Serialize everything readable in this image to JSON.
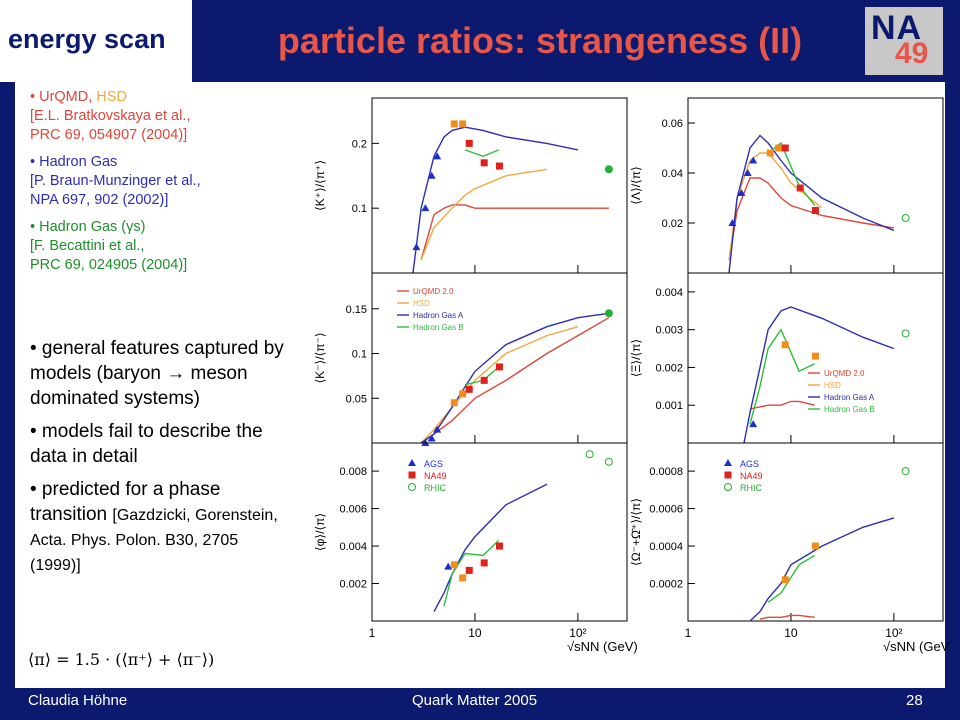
{
  "header": {
    "left_label": "energy scan",
    "title": "particle ratios: strangeness (II)",
    "logo_text_top": "NA",
    "logo_text_bottom": "49"
  },
  "refs": [
    {
      "line1a": "• UrQMD, ",
      "line1b": "HSD",
      "line2": "[E.L. Bratkovskaya et al.,",
      "line3": "PRC 69, 054907 (2004)]"
    },
    {
      "line1": "• Hadron Gas",
      "line2": "[P. Braun-Munzinger et al.,",
      "line3": "NPA 697, 902 (2002)]"
    },
    {
      "line1": "• Hadron Gas (γs)",
      "line2": "[F. Becattini et al.,",
      "line3": "PRC 69, 024905 (2004)]"
    }
  ],
  "bullets": [
    "• general features captured by models (baryon → meson dominated systems)",
    "• models fail to describe the data in detail",
    "•  predicted for a phase transition "
  ],
  "bullet3_small": "[Gazdzicki, Gorenstein, Acta. Phys. Polon. B30, 2705 (1999)]",
  "formula": "⟨π⟩ = 1.5 · (⟨π⁺⟩ + ⟨π⁻⟩)",
  "footer": {
    "left": "Claudia Höhne",
    "center": "Quark Matter 2005",
    "right": "28"
  },
  "colors": {
    "urqmd": "#e0453a",
    "hsd": "#f2a83b",
    "hgA": "#2b2fb5",
    "hgB": "#2cbf3b",
    "ags": "#1b2fd0",
    "na49": "#e0201a",
    "na49_open": "#f28c1a",
    "rhic": "#22b030"
  },
  "chart_data": [
    {
      "type": "line",
      "ylabel": "⟨K⁺⟩/⟨π⁺⟩",
      "yticks": [
        0.1,
        0.2
      ],
      "ylim": [
        0,
        0.27
      ],
      "show_xticks": false,
      "series": [
        {
          "name": "UrQMD 2.0",
          "x": [
            3,
            4,
            5,
            6,
            8,
            10,
            20,
            50,
            100,
            200
          ],
          "values": [
            0.02,
            0.09,
            0.1,
            0.105,
            0.105,
            0.1,
            0.1,
            0.1,
            0.1,
            0.1
          ]
        },
        {
          "name": "HSD",
          "x": [
            3,
            4,
            6,
            8,
            10,
            20,
            50
          ],
          "values": [
            0.02,
            0.07,
            0.1,
            0.12,
            0.13,
            0.15,
            0.16
          ]
        },
        {
          "name": "Hadron Gas A",
          "x": [
            2.5,
            3,
            4,
            5,
            6,
            8,
            12,
            20,
            50,
            100
          ],
          "values": [
            0.0,
            0.1,
            0.18,
            0.21,
            0.22,
            0.225,
            0.22,
            0.21,
            0.2,
            0.19
          ]
        },
        {
          "name": "Hadron Gas B",
          "x": [
            8,
            12,
            17
          ],
          "values": [
            0.19,
            0.18,
            0.19
          ]
        }
      ],
      "points": [
        {
          "set": "AGS",
          "x": [
            2.7,
            3.3,
            3.8,
            4.3
          ],
          "values": [
            0.04,
            0.1,
            0.15,
            0.18
          ]
        },
        {
          "set": "NA49",
          "x": [
            6.3,
            7.6,
            8.8,
            12.3,
            17.3
          ],
          "values": [
            0.23,
            0.23,
            0.2,
            0.17,
            0.165
          ]
        },
        {
          "set": "RHIC",
          "x": [
            200
          ],
          "values": [
            0.16
          ]
        }
      ]
    },
    {
      "type": "line",
      "ylabel": "⟨Λ⟩/⟨π⟩",
      "yticks": [
        0.02,
        0.04,
        0.06
      ],
      "ylim": [
        0,
        0.07
      ],
      "show_xticks": false,
      "series": [
        {
          "name": "UrQMD 2.0",
          "x": [
            2.5,
            3,
            4,
            5,
            6,
            8,
            10,
            20,
            50,
            100
          ],
          "values": [
            0.005,
            0.025,
            0.038,
            0.038,
            0.036,
            0.03,
            0.027,
            0.023,
            0.02,
            0.018
          ]
        },
        {
          "name": "HSD",
          "x": [
            2.5,
            3,
            4,
            5,
            6,
            8,
            10,
            20
          ],
          "values": [
            0.005,
            0.03,
            0.045,
            0.048,
            0.048,
            0.042,
            0.036,
            0.026
          ]
        },
        {
          "name": "Hadron Gas A",
          "x": [
            2.5,
            3,
            4,
            5,
            6,
            8,
            10,
            20,
            50,
            100
          ],
          "values": [
            0.0,
            0.03,
            0.05,
            0.055,
            0.052,
            0.045,
            0.04,
            0.03,
            0.022,
            0.017
          ]
        },
        {
          "name": "Hadron Gas B",
          "x": [
            6,
            8,
            12,
            17
          ],
          "values": [
            0.048,
            0.052,
            0.035,
            0.027
          ]
        }
      ],
      "points": [
        {
          "set": "AGS",
          "x": [
            2.7,
            3.3,
            3.8,
            4.3
          ],
          "values": [
            0.02,
            0.032,
            0.04,
            0.045
          ]
        },
        {
          "set": "NA49",
          "x": [
            6.3,
            7.6,
            8.8,
            12.3,
            17.3
          ],
          "values": [
            0.048,
            0.05,
            0.05,
            0.034,
            0.025
          ]
        },
        {
          "set": "RHIC",
          "x": [
            130
          ],
          "values": [
            0.022
          ]
        }
      ]
    },
    {
      "type": "line",
      "ylabel": "⟨K⁻⟩/⟨π⁻⟩",
      "yticks": [
        0.05,
        0.1,
        0.15
      ],
      "ylim": [
        0,
        0.19
      ],
      "show_xticks": false,
      "series": [
        {
          "name": "UrQMD 2.0",
          "x": [
            3,
            4,
            6,
            10,
            20,
            50,
            100,
            200
          ],
          "values": [
            0.0,
            0.01,
            0.025,
            0.05,
            0.07,
            0.1,
            0.12,
            0.14
          ]
        },
        {
          "name": "HSD",
          "x": [
            3,
            4,
            6,
            10,
            20,
            50,
            100
          ],
          "values": [
            0.0,
            0.015,
            0.04,
            0.07,
            0.1,
            0.12,
            0.13
          ]
        },
        {
          "name": "Hadron Gas A",
          "x": [
            3,
            4,
            6,
            10,
            20,
            50,
            100,
            200
          ],
          "values": [
            0.0,
            0.01,
            0.04,
            0.08,
            0.11,
            0.13,
            0.14,
            0.145
          ]
        },
        {
          "name": "Hadron Gas B",
          "x": [
            8,
            12,
            17
          ],
          "values": [
            0.065,
            0.07,
            0.085
          ]
        }
      ],
      "points": [
        {
          "set": "AGS",
          "x": [
            3.3,
            3.8,
            4.3
          ],
          "values": [
            0.0,
            0.005,
            0.015
          ]
        },
        {
          "set": "NA49",
          "x": [
            6.3,
            7.6,
            8.8,
            12.3,
            17.3
          ],
          "values": [
            0.045,
            0.055,
            0.06,
            0.07,
            0.085
          ]
        },
        {
          "set": "RHIC",
          "x": [
            200
          ],
          "values": [
            0.145
          ]
        }
      ],
      "legend": [
        "UrQMD 2.0",
        "HSD",
        "Hadron Gas A",
        "Hadron Gas B"
      ]
    },
    {
      "type": "line",
      "ylabel": "⟨Ξ⟩/⟨π⟩",
      "yticks": [
        0.001,
        0.002,
        0.003,
        0.004
      ],
      "ylim": [
        0,
        0.0045
      ],
      "show_xticks": false,
      "series": [
        {
          "name": "UrQMD 2.0",
          "x": [
            4,
            6,
            8,
            10,
            12,
            17
          ],
          "values": [
            0.0009,
            0.001,
            0.001,
            0.0011,
            0.0011,
            0.001
          ]
        },
        {
          "name": "HSD",
          "x": [],
          "values": []
        },
        {
          "name": "Hadron Gas A",
          "x": [
            3.5,
            4,
            5,
            6,
            8,
            10,
            20,
            50,
            100
          ],
          "values": [
            0.0,
            0.0008,
            0.002,
            0.003,
            0.0035,
            0.0036,
            0.0033,
            0.0028,
            0.0025
          ]
        },
        {
          "name": "Hadron Gas B",
          "x": [
            4,
            5,
            6,
            8,
            12,
            17
          ],
          "values": [
            0.0005,
            0.0015,
            0.0025,
            0.003,
            0.0019,
            0.0021
          ]
        }
      ],
      "points": [
        {
          "set": "AGS",
          "x": [
            4.3
          ],
          "values": [
            0.0005
          ]
        },
        {
          "set": "NA49",
          "x": [
            8.8,
            17.3
          ],
          "values": [
            0.0026,
            0.0023
          ]
        },
        {
          "set": "RHIC",
          "x": [
            130
          ],
          "values": [
            0.0029
          ]
        }
      ],
      "legend": [
        "UrQMD 2.0",
        "HSD",
        "Hadron Gas A",
        "Hadron Gas B"
      ]
    },
    {
      "type": "line",
      "ylabel": "⟨φ⟩/⟨π⟩",
      "yticks": [
        0.002,
        0.004,
        0.006,
        0.008
      ],
      "ylim": [
        0,
        0.0095
      ],
      "show_xticks": true,
      "xlabel": "√sNN (GeV)",
      "series": [
        {
          "name": "Hadron Gas A",
          "x": [
            4,
            5,
            6,
            8,
            10,
            20,
            50
          ],
          "values": [
            0.0005,
            0.0015,
            0.0025,
            0.0038,
            0.0045,
            0.0062,
            0.0073
          ]
        },
        {
          "name": "Hadron Gas B",
          "x": [
            5,
            6,
            8,
            12,
            17
          ],
          "values": [
            0.0008,
            0.0025,
            0.0036,
            0.0035,
            0.0043
          ]
        }
      ],
      "points": [
        {
          "set": "AGS",
          "x": [
            5.5
          ],
          "values": [
            0.0029
          ]
        },
        {
          "set": "NA49",
          "x": [
            6.3,
            7.6,
            8.8,
            12.3,
            17.3
          ],
          "values": [
            0.003,
            0.0023,
            0.0027,
            0.0031,
            0.004
          ]
        },
        {
          "set": "RHIC",
          "x": [
            130,
            200
          ],
          "values": [
            0.0089,
            0.0085
          ]
        }
      ],
      "legend": [
        "AGS",
        "NA49",
        "RHIC"
      ]
    },
    {
      "type": "line",
      "ylabel": "⟨Ω⁻+Ω̄⁺⟩/⟨π⟩",
      "yticks": [
        0.0002,
        0.0004,
        0.0006,
        0.0008
      ],
      "ylim": [
        0,
        0.00095
      ],
      "show_xticks": true,
      "xlabel": "√sNN (GeV)",
      "series": [
        {
          "name": "UrQMD 2.0",
          "x": [
            5,
            6,
            8,
            10,
            12,
            17
          ],
          "values": [
            1e-05,
            2e-05,
            2e-05,
            3e-05,
            3e-05,
            2e-05
          ]
        },
        {
          "name": "Hadron Gas A",
          "x": [
            4,
            5,
            6,
            8,
            10,
            20,
            50,
            100
          ],
          "values": [
            0.0,
            5e-05,
            0.00012,
            0.0002,
            0.0003,
            0.0004,
            0.0005,
            0.00055
          ]
        },
        {
          "name": "Hadron Gas B",
          "x": [
            6,
            8,
            12,
            17
          ],
          "values": [
            0.0001,
            0.00015,
            0.0003,
            0.00035
          ]
        }
      ],
      "points": [
        {
          "set": "NA49",
          "x": [
            8.8,
            17.3
          ],
          "values": [
            0.00022,
            0.0004
          ]
        },
        {
          "set": "RHIC",
          "x": [
            130
          ],
          "values": [
            0.0008
          ]
        }
      ],
      "legend": [
        "AGS",
        "NA49",
        "RHIC"
      ]
    }
  ]
}
